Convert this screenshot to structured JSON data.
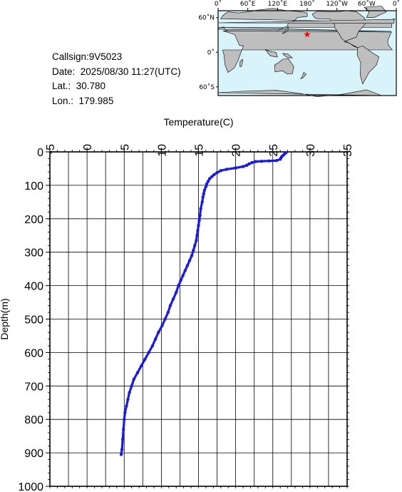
{
  "info": {
    "callsign": "Callsign:9V5023",
    "date": "Date:  2025/08/30 11:27(UTC)",
    "lat": "Lat.:  30.780",
    "lon": "Lon.:  179.985"
  },
  "map": {
    "top_labels": [
      "0˚",
      "60˚E",
      "120˚E",
      "180˚",
      "120˚W",
      "60˚W",
      "0˚"
    ],
    "side_labels": [
      "60˚N",
      "0˚",
      "60˚S"
    ],
    "marker": {
      "lat": 30.78,
      "lon": 179.985,
      "color": "#ff0000"
    },
    "ocean_color": "#d8f4fa",
    "land_color": "#bebebe"
  },
  "chart_data": {
    "type": "line",
    "xlabel": "Temperature(C)",
    "ylabel": "Depth(m)",
    "xlim": [
      -5,
      35
    ],
    "ylim": [
      0,
      1000
    ],
    "y_inverted": true,
    "x_axis_position": "top",
    "xticks": [
      "-5",
      "0",
      "5",
      "10",
      "15",
      "20",
      "25",
      "30",
      "35"
    ],
    "yticks": [
      "0",
      "100",
      "200",
      "300",
      "400",
      "500",
      "600",
      "700",
      "800",
      "900",
      "1000"
    ],
    "grid": true,
    "series_color": "#1a1ae6",
    "series": [
      {
        "x": [
          26.8,
          26.6,
          26.4,
          26.2,
          26.1,
          26.0,
          25.5,
          24.5,
          23.5,
          22.7,
          22.2,
          21.8,
          21.5,
          21.0,
          20.0,
          18.8,
          18.0,
          17.5,
          17.1,
          16.8,
          16.5,
          16.3,
          16.1,
          16.0,
          15.8,
          15.7,
          15.6,
          15.5,
          15.3,
          15.2,
          15.1,
          15.0,
          14.9,
          14.8,
          14.7,
          14.5,
          14.3,
          14.1,
          13.8,
          13.5,
          13.2,
          12.9,
          12.6,
          12.3,
          12.0,
          11.6,
          11.2,
          10.9,
          10.5,
          10.1,
          9.6,
          9.2,
          8.8,
          8.3,
          7.8,
          7.3,
          6.8,
          6.3,
          6.0,
          5.7,
          5.5,
          5.3,
          5.1,
          5.0,
          4.9,
          4.8,
          4.7,
          4.6
        ],
        "y": [
          2,
          6,
          10,
          14,
          18,
          22,
          26,
          27,
          28,
          29,
          32,
          36,
          40,
          44,
          48,
          52,
          56,
          62,
          68,
          74,
          80,
          88,
          96,
          104,
          115,
          125,
          135,
          150,
          170,
          190,
          205,
          220,
          235,
          250,
          265,
          280,
          295,
          310,
          325,
          340,
          355,
          370,
          385,
          400,
          420,
          440,
          460,
          480,
          500,
          520,
          540,
          560,
          580,
          600,
          620,
          640,
          660,
          680,
          700,
          720,
          740,
          760,
          780,
          800,
          830,
          860,
          890,
          905
        ]
      }
    ]
  }
}
